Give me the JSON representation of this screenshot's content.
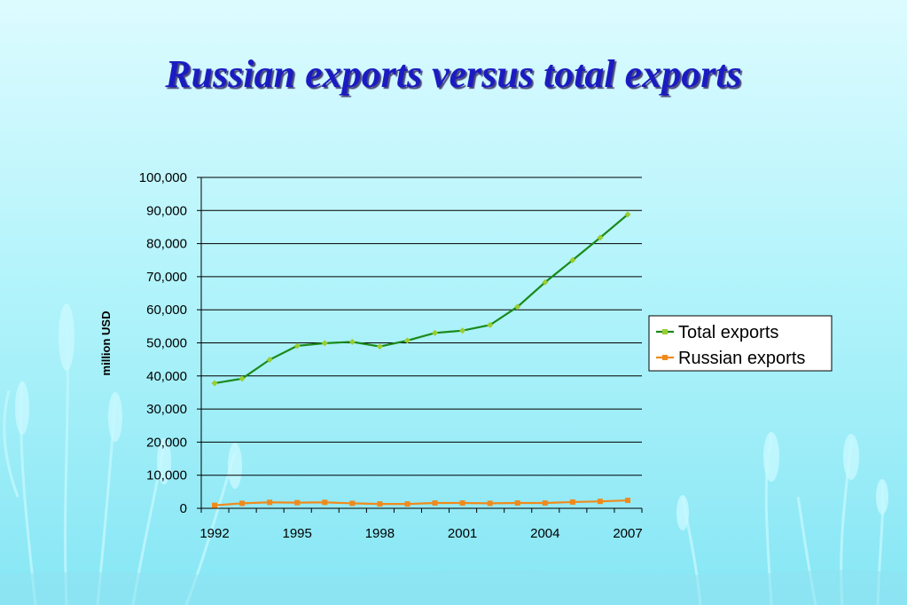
{
  "slide": {
    "title": "Russian exports versus total exports"
  },
  "chart_data": {
    "type": "line",
    "x": [
      1992,
      1993,
      1994,
      1995,
      1996,
      1997,
      1998,
      1999,
      2000,
      2001,
      2002,
      2003,
      2004,
      2005,
      2006,
      2007
    ],
    "x_tick_labels": [
      "1992",
      "1995",
      "1998",
      "2001",
      "2004",
      "2007"
    ],
    "y_tick_labels": [
      "0",
      "10,000",
      "20,000",
      "30,000",
      "40,000",
      "50,000",
      "60,000",
      "70,000",
      "80,000",
      "90,000",
      "100,000"
    ],
    "ylabel": "million USD",
    "xlabel": "",
    "ylim": [
      0,
      100000
    ],
    "grid": "horizontal",
    "legend_position": "right",
    "series": [
      {
        "name": "Total exports",
        "color": "#1a8a1a",
        "marker_color": "#9acd32",
        "marker": "diamond",
        "values": [
          37800,
          39200,
          44900,
          49100,
          49900,
          50300,
          48900,
          50700,
          53000,
          53700,
          55400,
          60900,
          68300,
          75000,
          81800,
          88800
        ]
      },
      {
        "name": "Russian exports",
        "color": "#f08a1c",
        "marker_color": "#f08a1c",
        "marker": "square",
        "values": [
          900,
          1500,
          1800,
          1700,
          1800,
          1500,
          1300,
          1300,
          1600,
          1600,
          1500,
          1600,
          1600,
          1900,
          2100,
          2400
        ]
      }
    ]
  }
}
